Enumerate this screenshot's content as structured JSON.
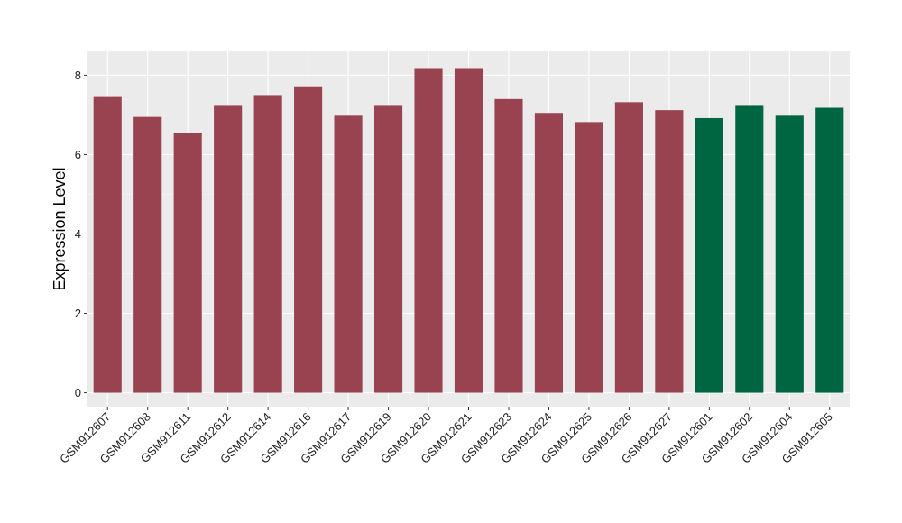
{
  "chart_data": {
    "type": "bar",
    "title": "",
    "xlabel": "",
    "ylabel": "Expression Level",
    "ylim": [
      -0.35,
      8.6
    ],
    "yticks": [
      0,
      2,
      4,
      6,
      8
    ],
    "grid": true,
    "panel_background": "#ebebeb",
    "series_colors": {
      "group_a": "#994350",
      "group_b": "#006642"
    },
    "categories": [
      "GSM912607",
      "GSM912608",
      "GSM912611",
      "GSM912612",
      "GSM912614",
      "GSM912616",
      "GSM912617",
      "GSM912619",
      "GSM912620",
      "GSM912621",
      "GSM912623",
      "GSM912624",
      "GSM912625",
      "GSM912626",
      "GSM912627",
      "GSM912601",
      "GSM912602",
      "GSM912604",
      "GSM912605"
    ],
    "values": [
      7.45,
      6.95,
      6.55,
      7.25,
      7.5,
      7.72,
      6.98,
      7.25,
      8.18,
      8.18,
      7.4,
      7.05,
      6.82,
      7.32,
      7.12,
      6.92,
      7.25,
      6.98,
      7.18
    ],
    "groups": [
      "group_a",
      "group_a",
      "group_a",
      "group_a",
      "group_a",
      "group_a",
      "group_a",
      "group_a",
      "group_a",
      "group_a",
      "group_a",
      "group_a",
      "group_a",
      "group_a",
      "group_a",
      "group_b",
      "group_b",
      "group_b",
      "group_b"
    ]
  }
}
